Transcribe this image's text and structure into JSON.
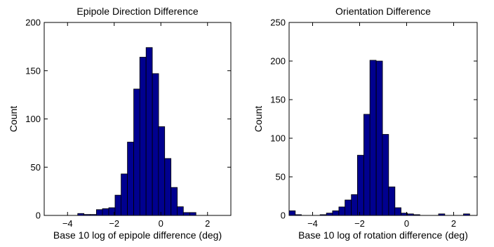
{
  "chart_data": [
    {
      "type": "bar",
      "title": "Epipole Direction Difference",
      "xlabel": "Base 10 log of epipole difference (deg)",
      "ylabel": "Count",
      "xlim": [
        -5,
        3
      ],
      "ylim": [
        0,
        200
      ],
      "xticks": [
        -4,
        -2,
        0,
        2
      ],
      "yticks": [
        0,
        50,
        100,
        150,
        200
      ],
      "xtick_labels": [
        "−4",
        "−2",
        "0",
        "2"
      ],
      "ytick_labels": [
        "0",
        "50",
        "100",
        "150",
        "200"
      ],
      "bin_width": 0.267,
      "x": [
        -4.5,
        -4.23,
        -3.97,
        -3.7,
        -3.43,
        -3.17,
        -2.9,
        -2.63,
        -2.37,
        -2.1,
        -1.83,
        -1.57,
        -1.3,
        -1.03,
        -0.77,
        -0.5,
        -0.23,
        0.03,
        0.3,
        0.57,
        0.83,
        1.1,
        1.37,
        1.63,
        1.9,
        2.17,
        2.43,
        2.7
      ],
      "values": [
        0,
        0,
        0,
        0,
        2,
        1,
        1,
        6,
        7,
        8,
        21,
        43,
        76,
        131,
        164,
        174,
        147,
        92,
        59,
        29,
        9,
        3,
        3,
        0,
        0,
        0,
        0,
        0
      ],
      "bar_color": "#00008f"
    },
    {
      "type": "bar",
      "title": "Orientation Difference",
      "xlabel": "Base 10 log of rotation difference (deg)",
      "ylabel": "Count",
      "xlim": [
        -5,
        3
      ],
      "ylim": [
        0,
        250
      ],
      "xticks": [
        -4,
        -2,
        0,
        2
      ],
      "yticks": [
        0,
        50,
        100,
        150,
        200,
        250
      ],
      "xtick_labels": [
        "−4",
        "−2",
        "0",
        "2"
      ],
      "ytick_labels": [
        "0",
        "50",
        "100",
        "150",
        "200",
        "250"
      ],
      "bin_width": 0.265,
      "x": [
        -4.87,
        -4.61,
        -4.34,
        -4.08,
        -3.81,
        -3.55,
        -3.28,
        -3.02,
        -2.75,
        -2.49,
        -2.22,
        -1.96,
        -1.69,
        -1.43,
        -1.16,
        -0.9,
        -0.63,
        -0.37,
        -0.1,
        0.16,
        0.43,
        0.69,
        0.96,
        1.22,
        1.49,
        1.75,
        2.02,
        2.28,
        2.55,
        2.81
      ],
      "values": [
        6,
        1,
        0,
        0,
        0,
        1,
        3,
        6,
        11,
        20,
        27,
        78,
        131,
        201,
        200,
        105,
        37,
        10,
        3,
        2,
        1,
        0,
        0,
        0,
        2,
        0,
        0,
        0,
        2,
        0
      ],
      "bar_color": "#00008f"
    }
  ]
}
